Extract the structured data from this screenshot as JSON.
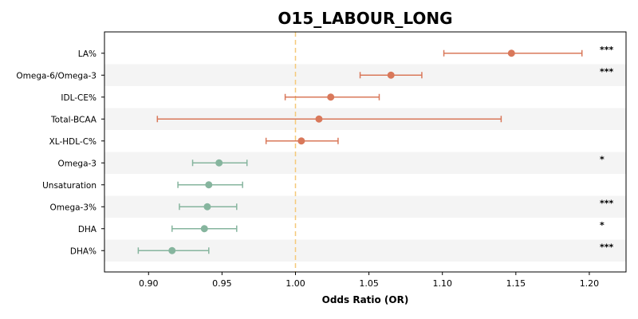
{
  "chart_data": {
    "type": "forest",
    "title": "O15_LABOUR_LONG",
    "xlabel": "Odds Ratio (OR)",
    "ylabel": "",
    "xlim": [
      0.87,
      1.225
    ],
    "x_ticks": [
      0.9,
      0.95,
      1.0,
      1.05,
      1.1,
      1.15,
      1.2
    ],
    "x_tick_labels": [
      "0.90",
      "0.95",
      "1.00",
      "1.05",
      "1.10",
      "1.15",
      "1.20"
    ],
    "reference_line": 1.0,
    "colors": {
      "positive": "#d9785a",
      "negative": "#86b59e",
      "reference": "#f5c97a",
      "band": "#f4f4f4"
    },
    "rows": [
      {
        "label": "LA%",
        "or": 1.147,
        "lo": 1.101,
        "hi": 1.195,
        "sig": "***",
        "direction": "positive"
      },
      {
        "label": "Omega-6/Omega-3",
        "or": 1.065,
        "lo": 1.044,
        "hi": 1.086,
        "sig": "***",
        "direction": "positive"
      },
      {
        "label": "IDL-CE%",
        "or": 1.024,
        "lo": 0.993,
        "hi": 1.057,
        "sig": "",
        "direction": "positive"
      },
      {
        "label": "Total-BCAA",
        "or": 1.016,
        "lo": 0.906,
        "hi": 1.14,
        "sig": "",
        "direction": "positive"
      },
      {
        "label": "XL-HDL-C%",
        "or": 1.004,
        "lo": 0.98,
        "hi": 1.029,
        "sig": "",
        "direction": "positive"
      },
      {
        "label": "Omega-3",
        "or": 0.948,
        "lo": 0.93,
        "hi": 0.967,
        "sig": "*",
        "direction": "negative"
      },
      {
        "label": "Unsaturation",
        "or": 0.941,
        "lo": 0.92,
        "hi": 0.964,
        "sig": "",
        "direction": "negative"
      },
      {
        "label": "Omega-3%",
        "or": 0.94,
        "lo": 0.921,
        "hi": 0.96,
        "sig": "***",
        "direction": "negative"
      },
      {
        "label": "DHA",
        "or": 0.938,
        "lo": 0.916,
        "hi": 0.96,
        "sig": "*",
        "direction": "negative"
      },
      {
        "label": "DHA%",
        "or": 0.916,
        "lo": 0.893,
        "hi": 0.941,
        "sig": "***",
        "direction": "negative"
      }
    ]
  }
}
